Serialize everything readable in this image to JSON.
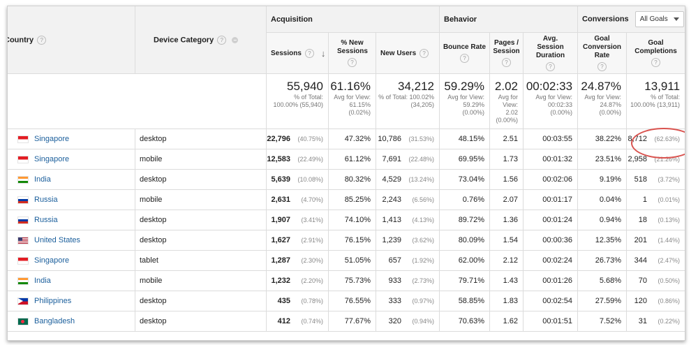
{
  "groups": {
    "acquisition": "Acquisition",
    "behavior": "Behavior",
    "conversions": "Conversions"
  },
  "goals_dropdown": "All Goals",
  "headers": {
    "country": "Country",
    "device": "Device Category",
    "sessions": "Sessions",
    "pct_new": "% New Sessions",
    "new_users": "New Users",
    "bounce": "Bounce Rate",
    "pages": "Pages / Session",
    "duration": "Avg. Session Duration",
    "conv_rate": "Goal Conversion Rate",
    "completions": "Goal Completions"
  },
  "totals": {
    "sessions": {
      "value": "55,940",
      "sub": "% of Total: 100.00% (55,940)"
    },
    "pct_new": {
      "value": "61.16%",
      "sub": "Avg for View: 61.15% (0.02%)"
    },
    "new_users": {
      "value": "34,212",
      "sub": "% of Total: 100.02% (34,205)"
    },
    "bounce": {
      "value": "59.29%",
      "sub": "Avg for View: 59.29% (0.00%)"
    },
    "pages": {
      "value": "2.02",
      "sub": "Avg for View: 2.02 (0.00%)"
    },
    "duration": {
      "value": "00:02:33",
      "sub": "Avg for View: 00:02:33 (0.00%)"
    },
    "conv_rate": {
      "value": "24.87%",
      "sub": "Avg for View: 24.87% (0.00%)"
    },
    "completions": {
      "value": "13,911",
      "sub": "% of Total: 100.00% (13,911)"
    }
  },
  "rows": [
    {
      "country": "Singapore",
      "flag": "singapore-flag-icon",
      "device": "desktop",
      "sessions": "22,796",
      "sessions_pct": "(40.75%)",
      "pct_new": "47.32%",
      "new_users": "10,786",
      "new_users_pct": "(31.53%)",
      "bounce": "48.15%",
      "pages": "2.51",
      "duration": "00:03:55",
      "conv_rate": "38.22%",
      "completions": "8,712",
      "completions_pct": "(62.63%)"
    },
    {
      "country": "Singapore",
      "flag": "singapore-flag-icon",
      "device": "mobile",
      "sessions": "12,583",
      "sessions_pct": "(22.49%)",
      "pct_new": "61.12%",
      "new_users": "7,691",
      "new_users_pct": "(22.48%)",
      "bounce": "69.95%",
      "pages": "1.73",
      "duration": "00:01:32",
      "conv_rate": "23.51%",
      "completions": "2,958",
      "completions_pct": "(21.26%)"
    },
    {
      "country": "India",
      "flag": "india-flag-icon",
      "device": "desktop",
      "sessions": "5,639",
      "sessions_pct": "(10.08%)",
      "pct_new": "80.32%",
      "new_users": "4,529",
      "new_users_pct": "(13.24%)",
      "bounce": "73.04%",
      "pages": "1.56",
      "duration": "00:02:06",
      "conv_rate": "9.19%",
      "completions": "518",
      "completions_pct": "(3.72%)"
    },
    {
      "country": "Russia",
      "flag": "russia-flag-icon",
      "device": "mobile",
      "sessions": "2,631",
      "sessions_pct": "(4.70%)",
      "pct_new": "85.25%",
      "new_users": "2,243",
      "new_users_pct": "(6.56%)",
      "bounce": "0.76%",
      "pages": "2.07",
      "duration": "00:01:17",
      "conv_rate": "0.04%",
      "completions": "1",
      "completions_pct": "(0.01%)"
    },
    {
      "country": "Russia",
      "flag": "russia-flag-icon",
      "device": "desktop",
      "sessions": "1,907",
      "sessions_pct": "(3.41%)",
      "pct_new": "74.10%",
      "new_users": "1,413",
      "new_users_pct": "(4.13%)",
      "bounce": "89.72%",
      "pages": "1.36",
      "duration": "00:01:24",
      "conv_rate": "0.94%",
      "completions": "18",
      "completions_pct": "(0.13%)"
    },
    {
      "country": "United States",
      "flag": "united-states-flag-icon",
      "device": "desktop",
      "sessions": "1,627",
      "sessions_pct": "(2.91%)",
      "pct_new": "76.15%",
      "new_users": "1,239",
      "new_users_pct": "(3.62%)",
      "bounce": "80.09%",
      "pages": "1.54",
      "duration": "00:00:36",
      "conv_rate": "12.35%",
      "completions": "201",
      "completions_pct": "(1.44%)"
    },
    {
      "country": "Singapore",
      "flag": "singapore-flag-icon",
      "device": "tablet",
      "sessions": "1,287",
      "sessions_pct": "(2.30%)",
      "pct_new": "51.05%",
      "new_users": "657",
      "new_users_pct": "(1.92%)",
      "bounce": "62.00%",
      "pages": "2.12",
      "duration": "00:02:24",
      "conv_rate": "26.73%",
      "completions": "344",
      "completions_pct": "(2.47%)"
    },
    {
      "country": "India",
      "flag": "india-flag-icon",
      "device": "mobile",
      "sessions": "1,232",
      "sessions_pct": "(2.20%)",
      "pct_new": "75.73%",
      "new_users": "933",
      "new_users_pct": "(2.73%)",
      "bounce": "79.71%",
      "pages": "1.43",
      "duration": "00:01:26",
      "conv_rate": "5.68%",
      "completions": "70",
      "completions_pct": "(0.50%)"
    },
    {
      "country": "Philippines",
      "flag": "philippines-flag-icon",
      "device": "desktop",
      "sessions": "435",
      "sessions_pct": "(0.78%)",
      "pct_new": "76.55%",
      "new_users": "333",
      "new_users_pct": "(0.97%)",
      "bounce": "58.85%",
      "pages": "1.83",
      "duration": "00:02:54",
      "conv_rate": "27.59%",
      "completions": "120",
      "completions_pct": "(0.86%)"
    },
    {
      "country": "Bangladesh",
      "flag": "bangladesh-flag-icon",
      "device": "desktop",
      "sessions": "412",
      "sessions_pct": "(0.74%)",
      "pct_new": "77.67%",
      "new_users": "320",
      "new_users_pct": "(0.94%)",
      "bounce": "70.63%",
      "pages": "1.62",
      "duration": "00:01:51",
      "conv_rate": "7.52%",
      "completions": "31",
      "completions_pct": "(0.22%)"
    }
  ]
}
